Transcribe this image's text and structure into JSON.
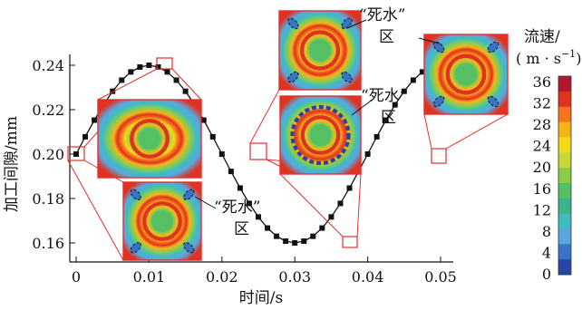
{
  "chart_data": {
    "type": "line",
    "xlabel": "时间/s",
    "ylabel": "加工间隙/mm",
    "xlim": [
      0,
      0.05
    ],
    "ylim": [
      0.15,
      0.245
    ],
    "xticks": [
      "0",
      "0.01",
      "0.02",
      "0.03",
      "0.04",
      "0.05"
    ],
    "yticks": [
      "0.16",
      "0.18",
      "0.20",
      "0.22",
      "0.24"
    ],
    "grid": false,
    "series": [
      {
        "x": [
          0,
          0.00125,
          0.0025,
          0.00375,
          0.005,
          0.00625,
          0.0075,
          0.00875,
          0.01,
          0.01125,
          0.0125,
          0.01375,
          0.015,
          0.01625,
          0.0175,
          0.01875,
          0.02,
          0.02125,
          0.0225,
          0.02375,
          0.025,
          0.02625,
          0.0275,
          0.02875,
          0.03,
          0.03125,
          0.0325,
          0.03375,
          0.035,
          0.03625,
          0.0375,
          0.03875,
          0.04,
          0.04125,
          0.0425,
          0.04375,
          0.045,
          0.04625,
          0.0475,
          0.04875,
          0.05
        ],
        "values": [
          0.2,
          0.2078,
          0.2153,
          0.2222,
          0.2283,
          0.2333,
          0.237,
          0.2392,
          0.24,
          0.2392,
          0.237,
          0.2333,
          0.2283,
          0.2222,
          0.2153,
          0.2078,
          0.2,
          0.1922,
          0.1847,
          0.1778,
          0.1717,
          0.1667,
          0.163,
          0.1608,
          0.16,
          0.1608,
          0.163,
          0.1667,
          0.1717,
          0.1778,
          0.1847,
          0.1922,
          0.2,
          0.2078,
          0.2153,
          0.2222,
          0.2283,
          0.2333,
          0.237,
          0.2392,
          0.24
        ]
      }
    ],
    "annotations": [
      "“死水”",
      "区"
    ],
    "colorbar": {
      "title": "流速/",
      "unit": "( m · s",
      "unit_sup": "−1",
      "unit_close": ")",
      "ticks": [
        "36",
        "32",
        "28",
        "24",
        "20",
        "16",
        "12",
        "8",
        "4",
        "0"
      ],
      "colors": [
        "#b2182b",
        "#e0321f",
        "#f4731d",
        "#f7b21a",
        "#f3d91c",
        "#c7d93a",
        "#8ccc4b",
        "#55bf63",
        "#3cb38e",
        "#3fbcc1",
        "#5aa6df",
        "#3a72c4",
        "#2845a3"
      ]
    }
  }
}
